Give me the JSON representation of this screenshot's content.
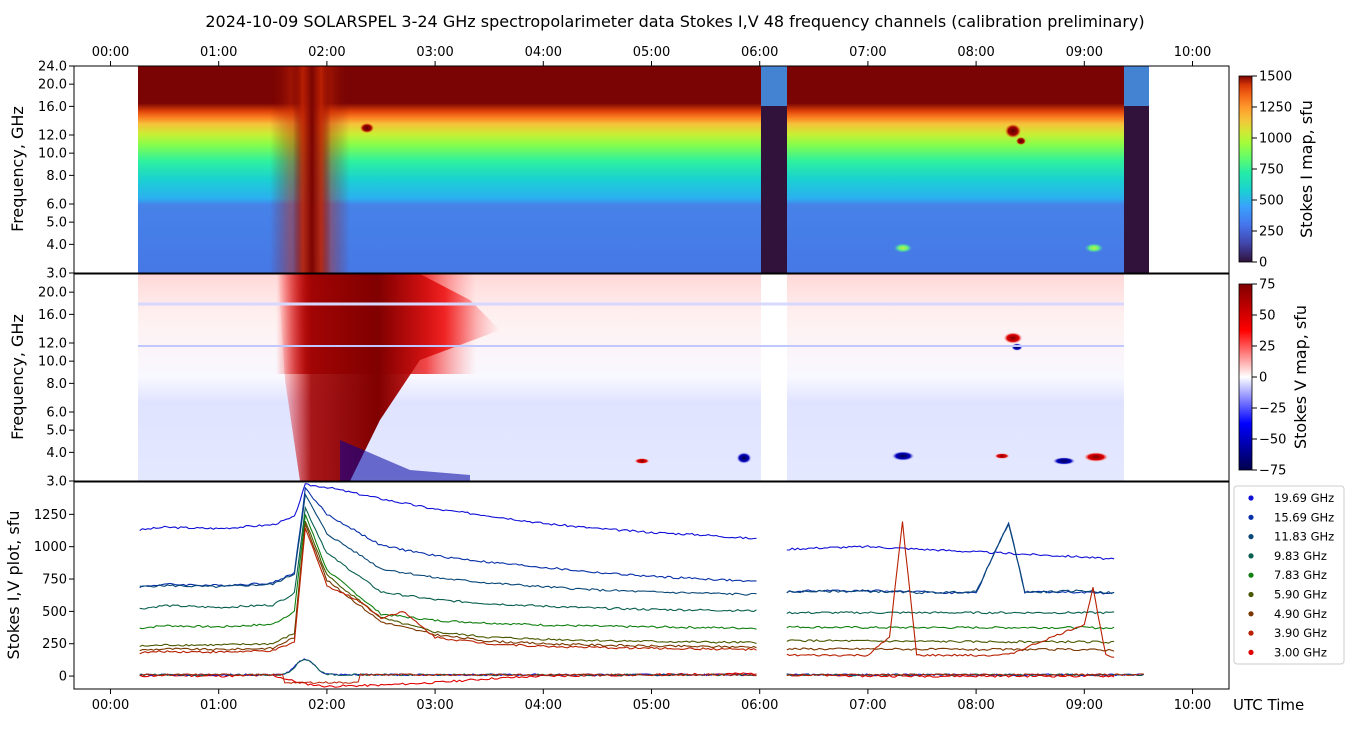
{
  "title": "2024-10-09  SOLARSPEL  3-24 GHz spectropolarimeter data   Stokes I,V   48 frequency channels   (calibration preliminary)",
  "chart_data": [
    {
      "type": "heatmap",
      "name": "stokes-i-map",
      "ylabel": "Frequency, GHz",
      "yticks": [
        "3.0",
        "4.0",
        "5.0",
        "6.0",
        "8.0",
        "10.0",
        "12.0",
        "16.0",
        "20.0",
        "24.0"
      ],
      "ylim_ghz": [
        3.0,
        24.0
      ],
      "colorbar": {
        "label": "Stokes I map, sfu",
        "ticks": [
          "0",
          "250",
          "500",
          "750",
          "1000",
          "1250",
          "1500"
        ],
        "range": [
          0,
          1500
        ]
      },
      "observation_gaps_utc": [
        [
          "06:00",
          "06:15"
        ],
        [
          "09:22",
          "09:35"
        ]
      ],
      "data_span_utc": [
        "00:16",
        "09:35"
      ],
      "bright_events": [
        {
          "time": "02:21",
          "freq_ghz": 13.0
        },
        {
          "time": "08:20",
          "freq_ghz": 12.5
        },
        {
          "time": "08:25",
          "freq_ghz": 11.5
        },
        {
          "time": "07:20",
          "freq_ghz": 4.0
        },
        {
          "time": "09:05",
          "freq_ghz": 4.0
        }
      ]
    },
    {
      "type": "heatmap",
      "name": "stokes-v-map",
      "ylabel": "Frequency, GHz",
      "yticks": [
        "3.0",
        "4.0",
        "5.0",
        "6.0",
        "8.0",
        "10.0",
        "12.0",
        "16.0",
        "20.0"
      ],
      "ylim_ghz": [
        3.0,
        24.0
      ],
      "colorbar": {
        "label": "Stokes V map, sfu",
        "ticks": [
          "75",
          "50",
          "25",
          "0",
          "−25",
          "−50",
          "−75"
        ],
        "range": [
          -75,
          75
        ]
      },
      "events": [
        {
          "time": "07:20",
          "freq_ghz": 4.0,
          "sign": "negative"
        },
        {
          "time": "09:00",
          "freq_ghz": 3.9,
          "sign": "negative"
        },
        {
          "time": "09:05",
          "freq_ghz": 4.0,
          "sign": "positive"
        },
        {
          "time": "08:20",
          "freq_ghz": 12.5,
          "sign": "positive"
        },
        {
          "time": "08:25",
          "freq_ghz": 11.8,
          "sign": "negative"
        }
      ]
    },
    {
      "type": "line",
      "name": "stokes-iv-plot",
      "ylabel": "Stokes I,V plot, sfu",
      "xlabel": "UTC Time",
      "yticks": [
        "0",
        "250",
        "500",
        "750",
        "1000",
        "1250"
      ],
      "ylim": [
        -100,
        1500
      ],
      "series": [
        {
          "name": "19.69 GHz",
          "color": "#1010d8",
          "times": [
            0.27,
            0.5,
            1.0,
            1.5,
            1.7,
            1.8,
            2.0,
            2.5,
            3.0,
            3.5,
            4.0,
            4.5,
            5.0,
            5.5,
            5.97,
            6.25,
            6.5,
            7.0,
            7.5,
            8.0,
            8.5,
            9.0,
            9.3
          ],
          "values": [
            1130,
            1150,
            1140,
            1170,
            1230,
            1480,
            1460,
            1370,
            1290,
            1240,
            1180,
            1140,
            1110,
            1090,
            1060,
            980,
            990,
            1000,
            980,
            960,
            940,
            920,
            900
          ]
        },
        {
          "name": "15.69 GHz",
          "color": "#0830a8",
          "times": [
            0.27,
            0.5,
            1.0,
            1.5,
            1.7,
            1.8,
            2.0,
            2.5,
            3.0,
            3.5,
            4.0,
            4.5,
            5.0,
            5.5,
            5.97,
            6.25,
            6.5,
            7.0,
            7.5,
            8.0,
            8.3,
            8.45,
            8.6,
            9.0,
            9.3
          ],
          "values": [
            690,
            710,
            700,
            720,
            800,
            1450,
            1250,
            1010,
            930,
            880,
            840,
            800,
            770,
            750,
            730,
            650,
            660,
            660,
            650,
            640,
            1190,
            650,
            650,
            645,
            640
          ]
        },
        {
          "name": "11.83 GHz",
          "color": "#0a4878",
          "times": [
            0.27,
            0.5,
            1.0,
            1.5,
            1.7,
            1.8,
            2.0,
            2.5,
            3.0,
            3.5,
            4.0,
            4.5,
            5.0,
            5.5,
            5.97,
            6.25,
            6.5,
            7.0,
            7.5,
            8.0,
            8.3,
            8.45,
            8.6,
            9.0,
            9.3
          ],
          "values": [
            690,
            700,
            690,
            710,
            790,
            1400,
            1100,
            830,
            760,
            720,
            690,
            665,
            650,
            640,
            630,
            650,
            655,
            655,
            645,
            650,
            1180,
            650,
            650,
            660,
            640
          ]
        },
        {
          "name": "9.83 GHz",
          "color": "#0a6050",
          "times": [
            0.27,
            0.5,
            1.0,
            1.5,
            1.7,
            1.8,
            2.0,
            2.5,
            3.0,
            3.5,
            4.0,
            4.5,
            5.0,
            5.5,
            5.97,
            6.25,
            7.0,
            8.0,
            9.0,
            9.3
          ],
          "values": [
            520,
            545,
            530,
            550,
            640,
            1300,
            950,
            650,
            590,
            560,
            540,
            525,
            515,
            510,
            505,
            490,
            490,
            490,
            490,
            490
          ]
        },
        {
          "name": "7.83 GHz",
          "color": "#108010",
          "times": [
            0.27,
            0.5,
            1.0,
            1.5,
            1.7,
            1.8,
            2.0,
            2.5,
            3.0,
            3.5,
            4.0,
            4.5,
            5.0,
            5.5,
            5.97,
            6.25,
            7.0,
            8.0,
            9.0,
            9.3
          ],
          "values": [
            370,
            390,
            380,
            400,
            500,
            1250,
            820,
            480,
            430,
            410,
            395,
            385,
            380,
            375,
            370,
            380,
            375,
            375,
            375,
            370
          ]
        },
        {
          "name": "5.90 GHz",
          "color": "#4a5800",
          "times": [
            0.27,
            0.5,
            1.0,
            1.5,
            1.7,
            1.8,
            2.0,
            2.5,
            3.0,
            3.5,
            4.0,
            4.5,
            5.0,
            5.5,
            5.97,
            6.25,
            7.0,
            8.0,
            9.0,
            9.3
          ],
          "values": [
            230,
            240,
            240,
            250,
            330,
            1200,
            780,
            450,
            340,
            300,
            285,
            275,
            268,
            262,
            258,
            275,
            270,
            265,
            265,
            260
          ]
        },
        {
          "name": "4.90 GHz",
          "color": "#7a3800",
          "times": [
            0.27,
            0.5,
            1.0,
            1.5,
            1.7,
            1.8,
            2.0,
            2.5,
            3.0,
            3.5,
            4.0,
            4.5,
            5.0,
            5.5,
            5.97,
            6.25,
            7.0,
            8.0,
            9.0,
            9.3
          ],
          "values": [
            200,
            210,
            205,
            215,
            300,
            1180,
            740,
            420,
            320,
            270,
            250,
            240,
            232,
            228,
            225,
            210,
            210,
            205,
            205,
            200
          ]
        },
        {
          "name": "3.90 GHz",
          "color": "#b82000",
          "times": [
            0.27,
            0.5,
            1.0,
            1.5,
            1.7,
            1.8,
            2.0,
            2.3,
            2.5,
            2.7,
            3.0,
            3.5,
            4.0,
            4.5,
            5.0,
            5.5,
            5.97,
            6.25,
            7.0,
            7.2,
            7.32,
            7.45,
            8.0,
            8.3,
            9.0,
            9.08,
            9.2,
            9.3
          ],
          "values": [
            180,
            190,
            185,
            195,
            260,
            1150,
            700,
            580,
            450,
            500,
            300,
            250,
            230,
            220,
            215,
            210,
            205,
            160,
            160,
            300,
            1190,
            160,
            160,
            165,
            400,
            680,
            160,
            150
          ]
        },
        {
          "name": "3.00 GHz",
          "color": "#e00000",
          "times": [
            0.27,
            0.5,
            1.0,
            1.5,
            1.7,
            1.8,
            2.0,
            2.5,
            3.0,
            3.5,
            4.0,
            4.5,
            5.0,
            5.5,
            5.97,
            6.25,
            7.0,
            8.0,
            9.0,
            9.3
          ],
          "values": [
            0,
            5,
            0,
            5,
            -40,
            -60,
            -80,
            -70,
            -50,
            -20,
            0,
            5,
            10,
            15,
            20,
            10,
            0,
            0,
            0,
            0
          ]
        }
      ],
      "stokes_v_curves_note": "low-level V traces near 0 sfu",
      "legend_position": "right"
    }
  ],
  "x_axis": {
    "ticks": [
      "00:00",
      "01:00",
      "02:00",
      "03:00",
      "04:00",
      "05:00",
      "06:00",
      "07:00",
      "08:00",
      "09:00",
      "10:00"
    ],
    "label": "UTC Time"
  }
}
